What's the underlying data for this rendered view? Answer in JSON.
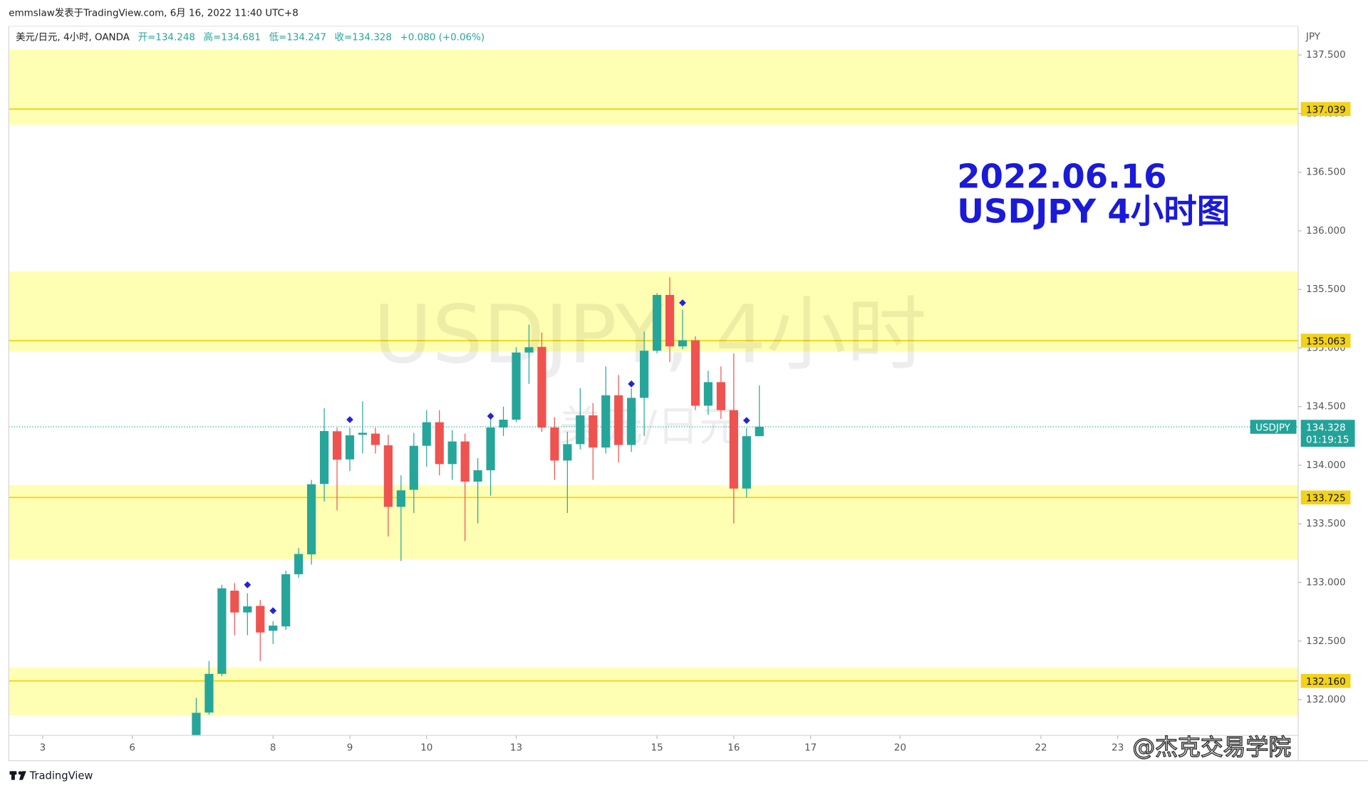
{
  "header": {
    "author_line": "emmslaw发表于TradingView.com, 6月 16, 2022 11:40 UTC+8"
  },
  "footer": {
    "brand": "TradingView",
    "credit": "@杰克交易学院"
  },
  "chart_data": {
    "type": "candlestick",
    "symbol": "美元/日元, 4小时, OANDA",
    "legend_items": [
      "开=134.248",
      "高=134.681",
      "低=134.247",
      "收=134.328",
      "+0.080 (+0.06%)"
    ],
    "annotation_lines": [
      "2022.06.16",
      "USDJPY 4小时图"
    ],
    "watermark": "USDJPY, 4小时",
    "watermark_sub": "美元/日元",
    "y_unit": "JPY",
    "up_color": "#26a69a",
    "down_color": "#ef5350",
    "marker_color": "#2424d6",
    "level_color": "#f2d21a",
    "zone_color": "#ffffb3",
    "x": [
      -6,
      -5,
      -4,
      -3,
      -2,
      -1,
      0,
      1,
      2,
      3,
      4,
      5,
      6,
      7,
      8,
      9,
      10,
      11,
      12,
      13,
      14,
      15,
      16,
      17,
      18,
      19,
      20,
      21,
      22,
      23,
      24,
      25,
      26,
      27,
      28,
      29,
      30,
      31,
      32,
      33,
      34,
      35,
      36,
      37,
      38
    ],
    "open": [
      131.6,
      131.89,
      132.22,
      132.93,
      132.744,
      132.8,
      132.588,
      132.625,
      133.07,
      133.24,
      133.84,
      134.29,
      134.05,
      134.26,
      134.27,
      134.17,
      133.645,
      133.79,
      134.166,
      134.367,
      134.01,
      134.203,
      133.86,
      133.957,
      134.322,
      134.389,
      134.962,
      135.01,
      134.322,
      134.04,
      134.18,
      134.426,
      134.151,
      134.597,
      134.173,
      134.575,
      134.977,
      135.453,
      135.014,
      135.066,
      134.508,
      134.709,
      134.47,
      133.801,
      134.248
    ],
    "high": [
      132.015,
      132.33,
      132.98,
      132.995,
      132.908,
      132.85,
      132.67,
      133.1,
      133.295,
      133.875,
      134.486,
      134.32,
      134.32,
      134.545,
      134.32,
      134.26,
      133.913,
      134.277,
      134.47,
      134.47,
      134.3,
      134.27,
      134.06,
      134.396,
      134.5,
      135.007,
      135.2,
      135.133,
      134.41,
      134.285,
      134.657,
      134.53,
      134.843,
      134.77,
      134.657,
      135.14,
      135.468,
      135.602,
      135.327,
      135.1,
      134.806,
      134.843,
      134.955,
      134.32,
      134.681
    ],
    "low": [
      131.5,
      131.87,
      132.2,
      132.55,
      132.55,
      132.33,
      132.476,
      132.595,
      133.04,
      133.153,
      133.69,
      133.615,
      133.95,
      134.1,
      134.1,
      133.392,
      133.183,
      133.593,
      133.987,
      133.913,
      133.875,
      133.354,
      133.504,
      133.74,
      134.25,
      134.367,
      134.694,
      134.285,
      133.875,
      133.593,
      134.136,
      133.875,
      134.1,
      134.024,
      134.114,
      134.25,
      134.955,
      134.88,
      134.99,
      134.47,
      134.43,
      134.396,
      133.503,
      133.727,
      134.247
    ],
    "close": [
      131.888,
      132.22,
      132.95,
      132.744,
      132.796,
      132.573,
      132.632,
      133.07,
      133.243,
      133.838,
      134.292,
      134.047,
      134.255,
      134.277,
      134.173,
      133.645,
      133.786,
      134.166,
      134.367,
      134.01,
      134.203,
      133.86,
      133.957,
      134.322,
      134.389,
      134.962,
      135.007,
      134.322,
      134.04,
      134.18,
      134.426,
      134.151,
      134.597,
      134.173,
      134.575,
      134.977,
      135.453,
      135.014,
      135.066,
      134.508,
      134.709,
      134.47,
      133.801,
      134.248,
      134.328
    ],
    "markers": [
      {
        "x": -2,
        "y": 132.98
      },
      {
        "x": 0,
        "y": 132.759
      },
      {
        "x": 6,
        "y": 134.389
      },
      {
        "x": 17,
        "y": 134.419
      },
      {
        "x": 28,
        "y": 134.694
      },
      {
        "x": 32,
        "y": 135.386
      },
      {
        "x": 37,
        "y": 134.382
      }
    ],
    "levels": [
      {
        "value": 137.039,
        "zone": [
          136.905,
          137.545
        ]
      },
      {
        "value": 135.063,
        "zone": [
          134.97,
          135.654
        ]
      },
      {
        "value": 133.725,
        "zone": [
          133.198,
          133.831
        ]
      },
      {
        "value": {
          "value": 132.16,
          "label": "132.160"
        },
        "zone": [
          131.866,
          132.275
        ]
      }
    ],
    "last_price": {
      "name": "USDJPY",
      "value": 134.328,
      "countdown": "01:19:15",
      "color": "#22a39a"
    },
    "xlim": [
      -20.65,
      80.1
    ],
    "xticks": [
      {
        "value": -18,
        "label": "3"
      },
      {
        "value": -11,
        "label": "6"
      },
      {
        "value": 0,
        "label": "8"
      },
      {
        "value": 6,
        "label": "9"
      },
      {
        "value": 12,
        "label": "10"
      },
      {
        "value": 19,
        "label": "13"
      },
      {
        "value": 30,
        "label": "15"
      },
      {
        "value": 36,
        "label": "16"
      },
      {
        "value": 42,
        "label": "17"
      },
      {
        "value": 49,
        "label": "20"
      },
      {
        "value": 60,
        "label": "22"
      },
      {
        "value": 66,
        "label": "23"
      }
    ],
    "ylim": [
      131.695,
      137.746
    ],
    "yticks": [
      {
        "value": 132,
        "label": "132.000"
      },
      {
        "value": 132.5,
        "label": "132.500"
      },
      {
        "value": 133,
        "label": "133.000"
      },
      {
        "value": 133.5,
        "label": "133.500"
      },
      {
        "value": 134,
        "label": "134.000"
      },
      {
        "value": 134.5,
        "label": "134.500"
      },
      {
        "value": 135,
        "label": "135.000"
      },
      {
        "value": 135.5,
        "label": "135.500"
      },
      {
        "value": 136,
        "label": "136.000"
      },
      {
        "value": 136.5,
        "label": "136.500"
      },
      {
        "value": 137,
        "label": "137.000"
      },
      {
        "value": 137.5,
        "label": "137.500"
      }
    ]
  }
}
